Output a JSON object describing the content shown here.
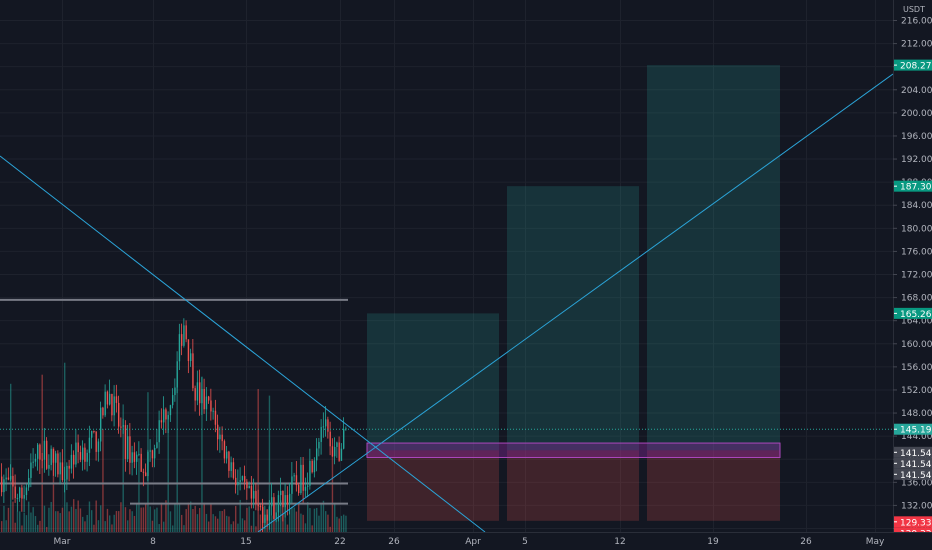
{
  "currency": "USDT",
  "chart_data": {
    "type": "candlestick",
    "price_axis": {
      "ticks": [
        "216.000",
        "212.000",
        "208.000",
        "204.000",
        "200.000",
        "196.000",
        "192.000",
        "188.000",
        "184.000",
        "180.000",
        "176.000",
        "172.000",
        "168.000",
        "164.000",
        "160.000",
        "156.000",
        "152.000",
        "148.000",
        "144.000",
        "140.000",
        "136.000",
        "132.000",
        "128.000"
      ],
      "range": [
        125.5,
        218.5
      ]
    },
    "time_axis": {
      "ticks": [
        "Mar",
        "8",
        "15",
        "22",
        "26",
        "Apr",
        "5",
        "12",
        "19",
        "26",
        "May"
      ]
    },
    "price_tags": [
      {
        "text": "208.273",
        "value": 208.273,
        "color": "#089981",
        "kind": "target"
      },
      {
        "text": "187.302",
        "value": 187.302,
        "color": "#089981",
        "kind": "target"
      },
      {
        "text": "165.266",
        "value": 165.266,
        "color": "#089981",
        "kind": "target"
      },
      {
        "text": "145.198",
        "value": 145.198,
        "color": "#26a69a",
        "kind": "last"
      },
      {
        "text": "141.545",
        "value": 141.545,
        "color": "#434651",
        "kind": "entry"
      },
      {
        "text": "141.545",
        "value": 141.545,
        "color": "#434651",
        "kind": "entry"
      },
      {
        "text": "141.545",
        "value": 141.545,
        "color": "#434651",
        "kind": "entry"
      },
      {
        "text": "129.330",
        "value": 129.33,
        "color": "#f23645",
        "kind": "stop"
      },
      {
        "text": "129.330",
        "value": 129.33,
        "color": "#f23645",
        "kind": "stop"
      },
      {
        "text": "129.330",
        "value": 129.33,
        "color": "#f23645",
        "kind": "stop"
      }
    ],
    "long_positions": [
      {
        "entry": 141.545,
        "target": 165.266,
        "stop": 129.33
      },
      {
        "entry": 141.545,
        "target": 187.302,
        "stop": 129.33
      },
      {
        "entry": 141.545,
        "target": 208.273,
        "stop": 129.33
      }
    ],
    "horizontal_levels": [
      167.6,
      135.8,
      132.3
    ],
    "last_price": 145.198,
    "colors": {
      "up": "#26a69a",
      "down": "#ef5350",
      "background": "#131722",
      "grid": "#1e222d",
      "trendline": "#2ba4d8"
    }
  }
}
